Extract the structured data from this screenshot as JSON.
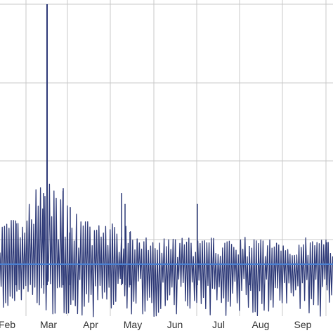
{
  "chart_data": {
    "type": "line",
    "title": "",
    "xlabel": "",
    "ylabel": "",
    "x_tick_labels": [
      "Feb",
      "Mar",
      "Apr",
      "May",
      "Jun",
      "Jul",
      "Aug",
      "Sep"
    ],
    "grid": true,
    "legend": "none",
    "series": [
      {
        "style": "daily spikes",
        "notable_peak": {
          "near": "Mar",
          "relative_height": 1.0
        },
        "values_pattern_note": "dense daily series; values read approximately off the figure"
      }
    ],
    "reference_line": {
      "relative_level": 0.18
    },
    "colors": {
      "series": "#2e3a78",
      "reference_line": "#4a7fd0",
      "grid": "#c8c8c8"
    }
  }
}
